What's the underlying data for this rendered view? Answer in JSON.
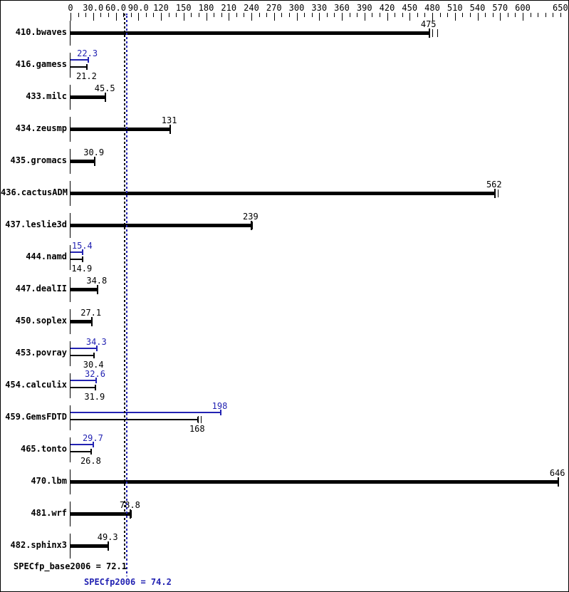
{
  "chart_data": {
    "type": "bar",
    "orientation": "horizontal",
    "colors": {
      "base": "#000000",
      "peak": "#2222b2",
      "background": "#ffffff"
    },
    "axis": {
      "min": 0,
      "max": 660,
      "minor_step": 10,
      "major_step": 30,
      "tick_labels": [
        {
          "value": 0,
          "text": "0"
        },
        {
          "value": 30,
          "text": "30.0"
        },
        {
          "value": 60,
          "text": "60.0"
        },
        {
          "value": 90,
          "text": "90.0"
        },
        {
          "value": 120,
          "text": "120"
        },
        {
          "value": 150,
          "text": "150"
        },
        {
          "value": 180,
          "text": "180"
        },
        {
          "value": 210,
          "text": "210"
        },
        {
          "value": 240,
          "text": "240"
        },
        {
          "value": 270,
          "text": "270"
        },
        {
          "value": 300,
          "text": "300"
        },
        {
          "value": 330,
          "text": "330"
        },
        {
          "value": 360,
          "text": "360"
        },
        {
          "value": 390,
          "text": "390"
        },
        {
          "value": 420,
          "text": "420"
        },
        {
          "value": 450,
          "text": "450"
        },
        {
          "value": 480,
          "text": "480"
        },
        {
          "value": 510,
          "text": "510"
        },
        {
          "value": 540,
          "text": "540"
        },
        {
          "value": 570,
          "text": "570"
        },
        {
          "value": 600,
          "text": "600"
        },
        {
          "value": 650,
          "text": "650"
        }
      ]
    },
    "benchmarks": [
      {
        "name": "410.bwaves",
        "base": 475,
        "base_label": "475",
        "peak": null,
        "peak_label": null,
        "base_run_ticks": [
          480,
          487
        ]
      },
      {
        "name": "416.gamess",
        "base": 21.2,
        "base_label": "21.2",
        "peak": 22.3,
        "peak_label": "22.3",
        "base_run_ticks": []
      },
      {
        "name": "433.milc",
        "base": 45.5,
        "base_label": "45.5",
        "peak": null,
        "peak_label": null,
        "base_run_ticks": []
      },
      {
        "name": "434.zeusmp",
        "base": 131,
        "base_label": "131",
        "peak": null,
        "peak_label": null,
        "base_run_ticks": []
      },
      {
        "name": "435.gromacs",
        "base": 30.9,
        "base_label": "30.9",
        "peak": null,
        "peak_label": null,
        "base_run_ticks": []
      },
      {
        "name": "436.cactusADM",
        "base": 562,
        "base_label": "562",
        "peak": null,
        "peak_label": null,
        "base_run_ticks": [
          567
        ]
      },
      {
        "name": "437.leslie3d",
        "base": 239,
        "base_label": "239",
        "peak": null,
        "peak_label": null,
        "base_run_ticks": [
          240,
          241
        ]
      },
      {
        "name": "444.namd",
        "base": 14.9,
        "base_label": "14.9",
        "peak": 15.4,
        "peak_label": "15.4",
        "base_run_ticks": []
      },
      {
        "name": "447.dealII",
        "base": 34.8,
        "base_label": "34.8",
        "peak": null,
        "peak_label": null,
        "base_run_ticks": []
      },
      {
        "name": "450.soplex",
        "base": 27.1,
        "base_label": "27.1",
        "peak": null,
        "peak_label": null,
        "base_run_ticks": []
      },
      {
        "name": "453.povray",
        "base": 30.4,
        "base_label": "30.4",
        "peak": 34.3,
        "peak_label": "34.3",
        "base_run_ticks": []
      },
      {
        "name": "454.calculix",
        "base": 31.9,
        "base_label": "31.9",
        "peak": 32.6,
        "peak_label": "32.6",
        "base_run_ticks": []
      },
      {
        "name": "459.GemsFDTD",
        "base": 168,
        "base_label": "168",
        "peak": 198,
        "peak_label": "198",
        "base_run_ticks": [
          169,
          173
        ]
      },
      {
        "name": "465.tonto",
        "base": 26.8,
        "base_label": "26.8",
        "peak": 29.7,
        "peak_label": "29.7",
        "base_run_ticks": []
      },
      {
        "name": "470.lbm",
        "base": 646,
        "base_label": "646",
        "peak": null,
        "peak_label": null,
        "base_run_ticks": []
      },
      {
        "name": "481.wrf",
        "base": 78.8,
        "base_label": "78.8",
        "peak": null,
        "peak_label": null,
        "base_run_ticks": [
          80
        ]
      },
      {
        "name": "482.sphinx3",
        "base": 49.3,
        "base_label": "49.3",
        "peak": null,
        "peak_label": null,
        "base_run_ticks": []
      }
    ],
    "reference_lines": [
      {
        "name": "base-score-line",
        "value": 72.1,
        "color": "#000000"
      },
      {
        "name": "peak-score-line",
        "value": 74.2,
        "color": "#2222b2"
      }
    ],
    "footer": {
      "base_text": "SPECfp_base2006 = 72.1",
      "peak_text": "SPECfp2006 = 74.2"
    }
  }
}
